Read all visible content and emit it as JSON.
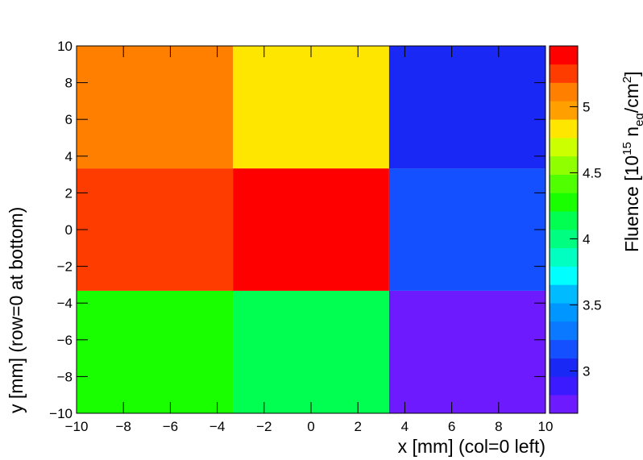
{
  "chart_data": {
    "type": "heatmap",
    "x_label": "x [mm] (col=0 left)",
    "y_label": "y [mm] (row=0 at bottom)",
    "colorbar_label": [
      "Fluence [10",
      "15",
      " n",
      "eq",
      "/cm",
      "2",
      "]"
    ],
    "xedges": [
      -10,
      -3.33,
      3.33,
      10
    ],
    "yedges": [
      -10,
      -3.33,
      3.33,
      10
    ],
    "z": [
      [
        4.3,
        4.1,
        2.75
      ],
      [
        5.25,
        5.4,
        3.15
      ],
      [
        5.1,
        4.8,
        3.0
      ]
    ],
    "xlim": [
      -10,
      10
    ],
    "ylim": [
      -10,
      10
    ],
    "xticks": [
      {
        "value": -10,
        "label": "−10"
      },
      {
        "value": -8,
        "label": "−8"
      },
      {
        "value": -6,
        "label": "−6"
      },
      {
        "value": -4,
        "label": "−4"
      },
      {
        "value": -2,
        "label": "−2"
      },
      0,
      2,
      4,
      6,
      8,
      10
    ],
    "yticks": [
      {
        "value": -10,
        "label": "−10"
      },
      {
        "value": -8,
        "label": "−8"
      },
      {
        "value": -6,
        "label": "−6"
      },
      {
        "value": -4,
        "label": "−4"
      },
      {
        "value": -2,
        "label": "−2"
      },
      0,
      2,
      4,
      6,
      8,
      10
    ],
    "zlim": [
      2.68,
      5.46
    ],
    "zticks": [
      3,
      3.5,
      4,
      4.5,
      5
    ],
    "palette": [
      "#6e1aff",
      "#3c1aff",
      "#1a28f5",
      "#1450ff",
      "#0a78ff",
      "#0096ff",
      "#00bbff",
      "#00ffff",
      "#00ffc0",
      "#00ff80",
      "#00ff50",
      "#1aff00",
      "#50ff00",
      "#90ff00",
      "#ccff00",
      "#ffe600",
      "#ffa000",
      "#ff7f00",
      "#ff3c00",
      "#ff0000"
    ]
  }
}
